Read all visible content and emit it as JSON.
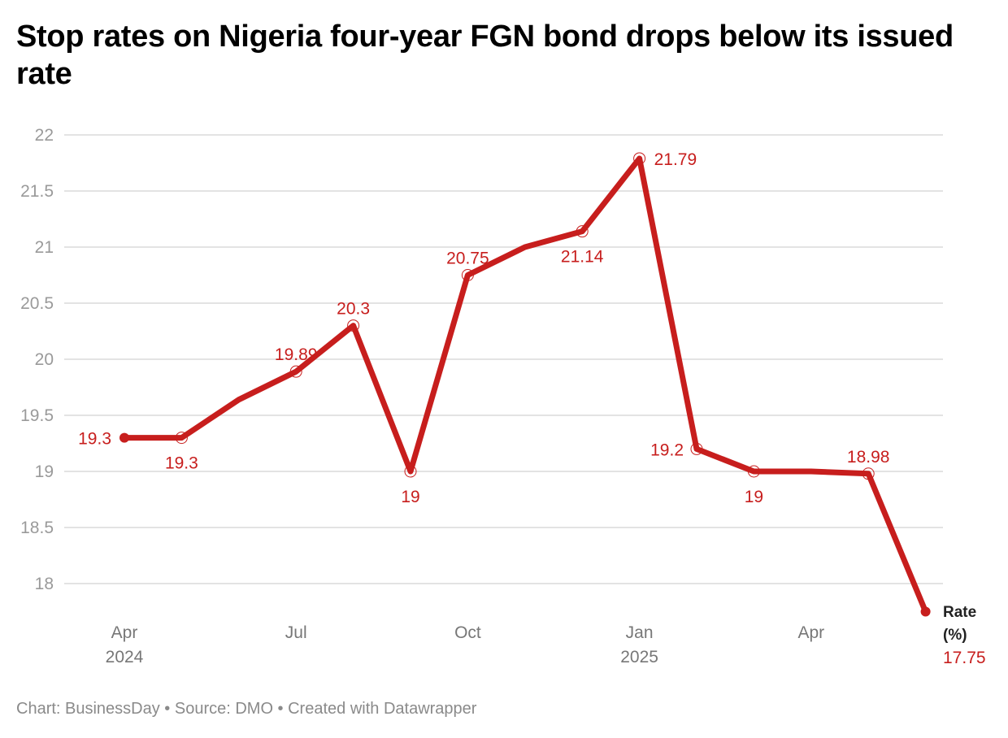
{
  "chart_data": {
    "type": "line",
    "title": "Stop rates on Nigeria  four-year FGN bond drops below its issued rate",
    "xlabel": "",
    "ylabel": "",
    "ylim": [
      18,
      22
    ],
    "yticks": [
      "22",
      "21.5",
      "21",
      "20.5",
      "20",
      "19.5",
      "19",
      "18.5",
      "18"
    ],
    "grid": true,
    "x_tick_labels": [
      {
        "label": "Apr",
        "sub": "2024",
        "index": 0
      },
      {
        "label": "Jul",
        "sub": "",
        "index": 3
      },
      {
        "label": "Oct",
        "sub": "",
        "index": 6
      },
      {
        "label": "Jan",
        "sub": "2025",
        "index": 9
      },
      {
        "label": "Apr",
        "sub": "",
        "index": 12
      }
    ],
    "series": [
      {
        "name": "Rate (%)",
        "name_lines": [
          "Rate",
          "(%)"
        ],
        "color": "#c71e1d",
        "x": [
          "2024-04",
          "2024-05",
          "2024-06",
          "2024-07",
          "2024-08",
          "2024-09",
          "2024-10",
          "2024-11",
          "2024-12",
          "2025-01",
          "2025-02",
          "2025-03",
          "2025-04",
          "2025-05",
          "2025-06"
        ],
        "values": [
          19.3,
          19.3,
          19.64,
          19.89,
          20.3,
          19.0,
          20.75,
          21.0,
          21.14,
          21.79,
          19.2,
          19.0,
          19.0,
          18.98,
          17.75
        ],
        "labels": [
          "19.3",
          "19.3",
          "",
          "19.89",
          "20.3",
          "19",
          "20.75",
          "",
          "21.14",
          "21.79",
          "19.2",
          "19",
          "",
          "18.98",
          "17.75"
        ],
        "label_pos": [
          "left",
          "below",
          "",
          "above",
          "above",
          "below",
          "above",
          "",
          "below",
          "right",
          "left",
          "below",
          "",
          "above",
          "end"
        ]
      }
    ]
  },
  "footer": {
    "text": "Chart: BusinessDay  • Source: DMO • Created with Datawrapper"
  }
}
